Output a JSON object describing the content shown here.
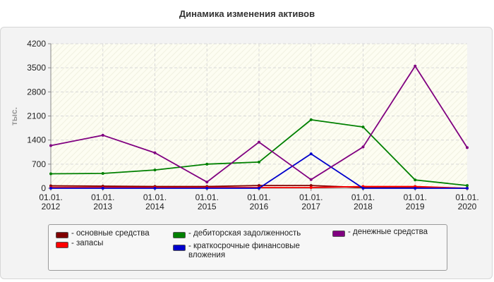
{
  "chart_data": {
    "type": "line",
    "title": "Динамика изменения активов",
    "ylabel": "тыс.",
    "xlabel": "",
    "categories": [
      "01.01.\n2012",
      "01.01.\n2013",
      "01.01.\n2014",
      "01.01.\n2015",
      "01.01.\n2016",
      "01.01.\n2017",
      "01.01.\n2018",
      "01.01.\n2019",
      "01.01.\n2020"
    ],
    "ylim": [
      0,
      4200
    ],
    "yticks": [
      0,
      700,
      1400,
      2100,
      2800,
      3500,
      4200
    ],
    "grid": true,
    "legend_position": "bottom",
    "series": [
      {
        "name": "- основные средства",
        "color": "#800000",
        "values": [
          70,
          60,
          50,
          50,
          80,
          80,
          20,
          20,
          0
        ]
      },
      {
        "name": "- запасы",
        "color": "#ff0000",
        "values": [
          20,
          20,
          20,
          20,
          20,
          20,
          50,
          50,
          0
        ]
      },
      {
        "name": "- дебиторская задолженность",
        "color": "#008000",
        "values": [
          420,
          430,
          530,
          700,
          760,
          1990,
          1780,
          240,
          80
        ]
      },
      {
        "name": "- краткосрочные финансовые вложения",
        "color": "#0000cc",
        "values": [
          0,
          0,
          0,
          0,
          0,
          1000,
          0,
          0,
          0
        ]
      },
      {
        "name": "- денежные средства",
        "color": "#800080",
        "values": [
          1240,
          1540,
          1030,
          180,
          1340,
          250,
          1200,
          3550,
          1180
        ]
      }
    ]
  }
}
